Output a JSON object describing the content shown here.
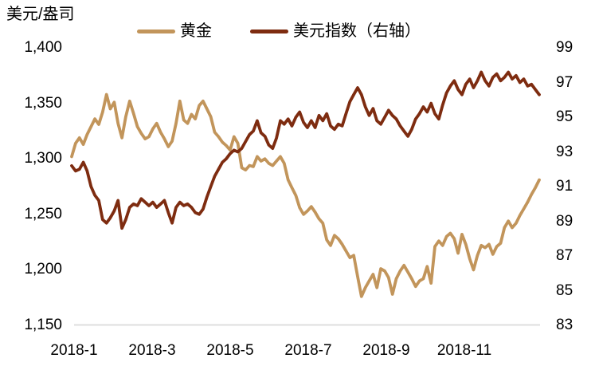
{
  "chart": {
    "unit_label": "美元/盎司",
    "colors": {
      "gold_line": "#C2955B",
      "usd_index_line": "#7E2C10",
      "axis_line": "#DADADA",
      "text": "#000000",
      "background": "#FFFFFF"
    }
  },
  "chart_data": {
    "type": "line",
    "title": "",
    "xlabel": "",
    "ylabel_left": "美元/盎司",
    "x_axis": {
      "tick_labels": [
        "2018-1",
        "2018-3",
        "2018-5",
        "2018-7",
        "2018-9",
        "2018-11"
      ],
      "range": [
        "2018-01-01",
        "2018-12-30"
      ],
      "note": "series values evenly spaced (~every 3 days) across 2018"
    },
    "left_axis": {
      "tick_labels": [
        "1,400",
        "1,350",
        "1,300",
        "1,250",
        "1,200",
        "1,150"
      ],
      "min": 1150,
      "max": 1400
    },
    "right_axis": {
      "tick_labels": [
        "99",
        "97",
        "95",
        "93",
        "91",
        "89",
        "87",
        "85",
        "83"
      ],
      "min": 83,
      "max": 99
    },
    "grid": false,
    "legend_position": "top-center",
    "series": [
      {
        "name": "黄金",
        "axis": "left",
        "color": "#C2955B",
        "values": [
          1302,
          1314,
          1319,
          1313,
          1322,
          1329,
          1336,
          1331,
          1342,
          1358,
          1345,
          1351,
          1332,
          1319,
          1338,
          1352,
          1341,
          1329,
          1323,
          1318,
          1320,
          1327,
          1332,
          1324,
          1318,
          1311,
          1316,
          1332,
          1352,
          1335,
          1332,
          1340,
          1336,
          1348,
          1352,
          1345,
          1338,
          1324,
          1320,
          1315,
          1312,
          1308,
          1320,
          1314,
          1292,
          1290,
          1294,
          1293,
          1302,
          1298,
          1300,
          1296,
          1294,
          1298,
          1302,
          1296,
          1281,
          1274,
          1267,
          1256,
          1250,
          1253,
          1257,
          1252,
          1246,
          1242,
          1227,
          1222,
          1231,
          1228,
          1223,
          1217,
          1211,
          1213,
          1194,
          1176,
          1184,
          1190,
          1196,
          1184,
          1201,
          1199,
          1193,
          1178,
          1192,
          1199,
          1204,
          1198,
          1192,
          1185,
          1190,
          1192,
          1203,
          1188,
          1221,
          1226,
          1222,
          1230,
          1233,
          1228,
          1215,
          1232,
          1223,
          1210,
          1200,
          1213,
          1222,
          1220,
          1223,
          1214,
          1221,
          1224,
          1238,
          1244,
          1238,
          1242,
          1249,
          1255,
          1261,
          1268,
          1274,
          1281
        ]
      },
      {
        "name": "美元指数（右轴）",
        "axis": "right",
        "color": "#7E2C10",
        "values": [
          92.2,
          91.9,
          92.0,
          92.4,
          91.9,
          91.0,
          90.5,
          90.2,
          89.1,
          88.9,
          89.2,
          89.6,
          90.2,
          88.6,
          89.1,
          89.8,
          90.0,
          89.9,
          90.3,
          90.1,
          89.9,
          90.1,
          89.8,
          90.0,
          90.2,
          89.5,
          88.9,
          89.8,
          90.1,
          89.9,
          90.0,
          89.8,
          89.5,
          89.4,
          89.7,
          90.4,
          91.0,
          91.6,
          92.0,
          92.4,
          92.6,
          92.9,
          93.1,
          93.0,
          93.2,
          93.6,
          94.0,
          94.2,
          94.8,
          94.1,
          93.9,
          93.4,
          93.2,
          93.8,
          94.8,
          94.6,
          94.9,
          94.5,
          95.0,
          95.3,
          94.7,
          94.4,
          94.8,
          94.4,
          95.1,
          94.8,
          95.2,
          94.5,
          94.3,
          94.6,
          94.5,
          95.2,
          95.9,
          96.3,
          96.7,
          96.3,
          95.6,
          95.1,
          95.5,
          94.8,
          94.6,
          95.0,
          95.4,
          95.1,
          94.9,
          94.5,
          94.2,
          93.9,
          94.3,
          94.9,
          95.2,
          95.6,
          95.3,
          95.8,
          95.2,
          94.9,
          95.7,
          96.4,
          96.8,
          97.1,
          96.6,
          96.3,
          96.9,
          97.2,
          96.7,
          97.1,
          97.6,
          97.1,
          96.8,
          97.3,
          97.5,
          97.1,
          97.3,
          97.6,
          97.2,
          97.4,
          97.0,
          97.2,
          96.8,
          96.9,
          96.6,
          96.3
        ]
      }
    ]
  }
}
